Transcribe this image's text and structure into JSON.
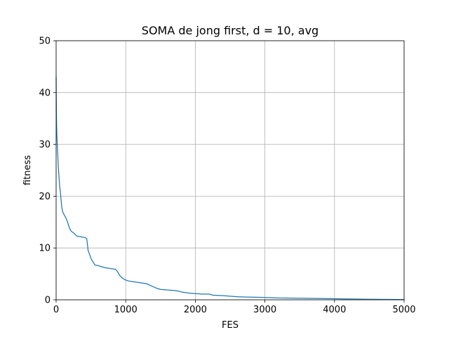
{
  "chart_data": {
    "type": "line",
    "title": "SOMA de jong first, d = 10, avg",
    "xlabel": "FES",
    "ylabel": "fitness",
    "xlim": [
      0,
      5000
    ],
    "ylim": [
      0,
      50
    ],
    "x_ticks": [
      0,
      1000,
      2000,
      3000,
      4000,
      5000
    ],
    "y_ticks": [
      0,
      10,
      20,
      30,
      40,
      50
    ],
    "x_tick_labels": [
      "0",
      "1000",
      "2000",
      "3000",
      "4000",
      "5000"
    ],
    "y_tick_labels": [
      "0",
      "10",
      "20",
      "30",
      "40",
      "50"
    ],
    "grid": true,
    "legend": "none",
    "series": [
      {
        "color": "#1f77b4",
        "x": [
          0,
          5,
          10,
          20,
          30,
          40,
          50,
          60,
          70,
          80,
          90,
          100,
          120,
          140,
          160,
          180,
          200,
          220,
          240,
          260,
          280,
          300,
          340,
          380,
          420,
          440,
          460,
          480,
          500,
          530,
          560,
          600,
          650,
          700,
          750,
          800,
          850,
          880,
          900,
          920,
          950,
          1000,
          1050,
          1100,
          1150,
          1200,
          1300,
          1350,
          1400,
          1450,
          1500,
          1600,
          1700,
          1750,
          1800,
          1900,
          2000,
          2100,
          2200,
          2250,
          2400,
          2500,
          2600,
          2700,
          2800,
          3000,
          3100,
          3200,
          3500,
          3800,
          4000,
          4200,
          4500,
          4800,
          5000
        ],
        "y": [
          43,
          35,
          32,
          29,
          26,
          24,
          22,
          21,
          19.5,
          18,
          17.2,
          16.8,
          16.3,
          15.8,
          15.2,
          14.3,
          13.6,
          13.2,
          13.0,
          12.8,
          12.5,
          12.3,
          12.2,
          12.1,
          12.0,
          11.8,
          9.5,
          8.8,
          8.0,
          7.3,
          6.7,
          6.6,
          6.4,
          6.2,
          6.1,
          6.0,
          5.9,
          5.5,
          5.0,
          4.6,
          4.2,
          3.8,
          3.6,
          3.5,
          3.4,
          3.3,
          3.1,
          2.8,
          2.5,
          2.2,
          2.0,
          1.9,
          1.8,
          1.7,
          1.5,
          1.3,
          1.2,
          1.1,
          1.1,
          0.9,
          0.8,
          0.7,
          0.6,
          0.55,
          0.5,
          0.45,
          0.4,
          0.35,
          0.3,
          0.25,
          0.2,
          0.15,
          0.1,
          0.07,
          0.05
        ]
      }
    ]
  }
}
